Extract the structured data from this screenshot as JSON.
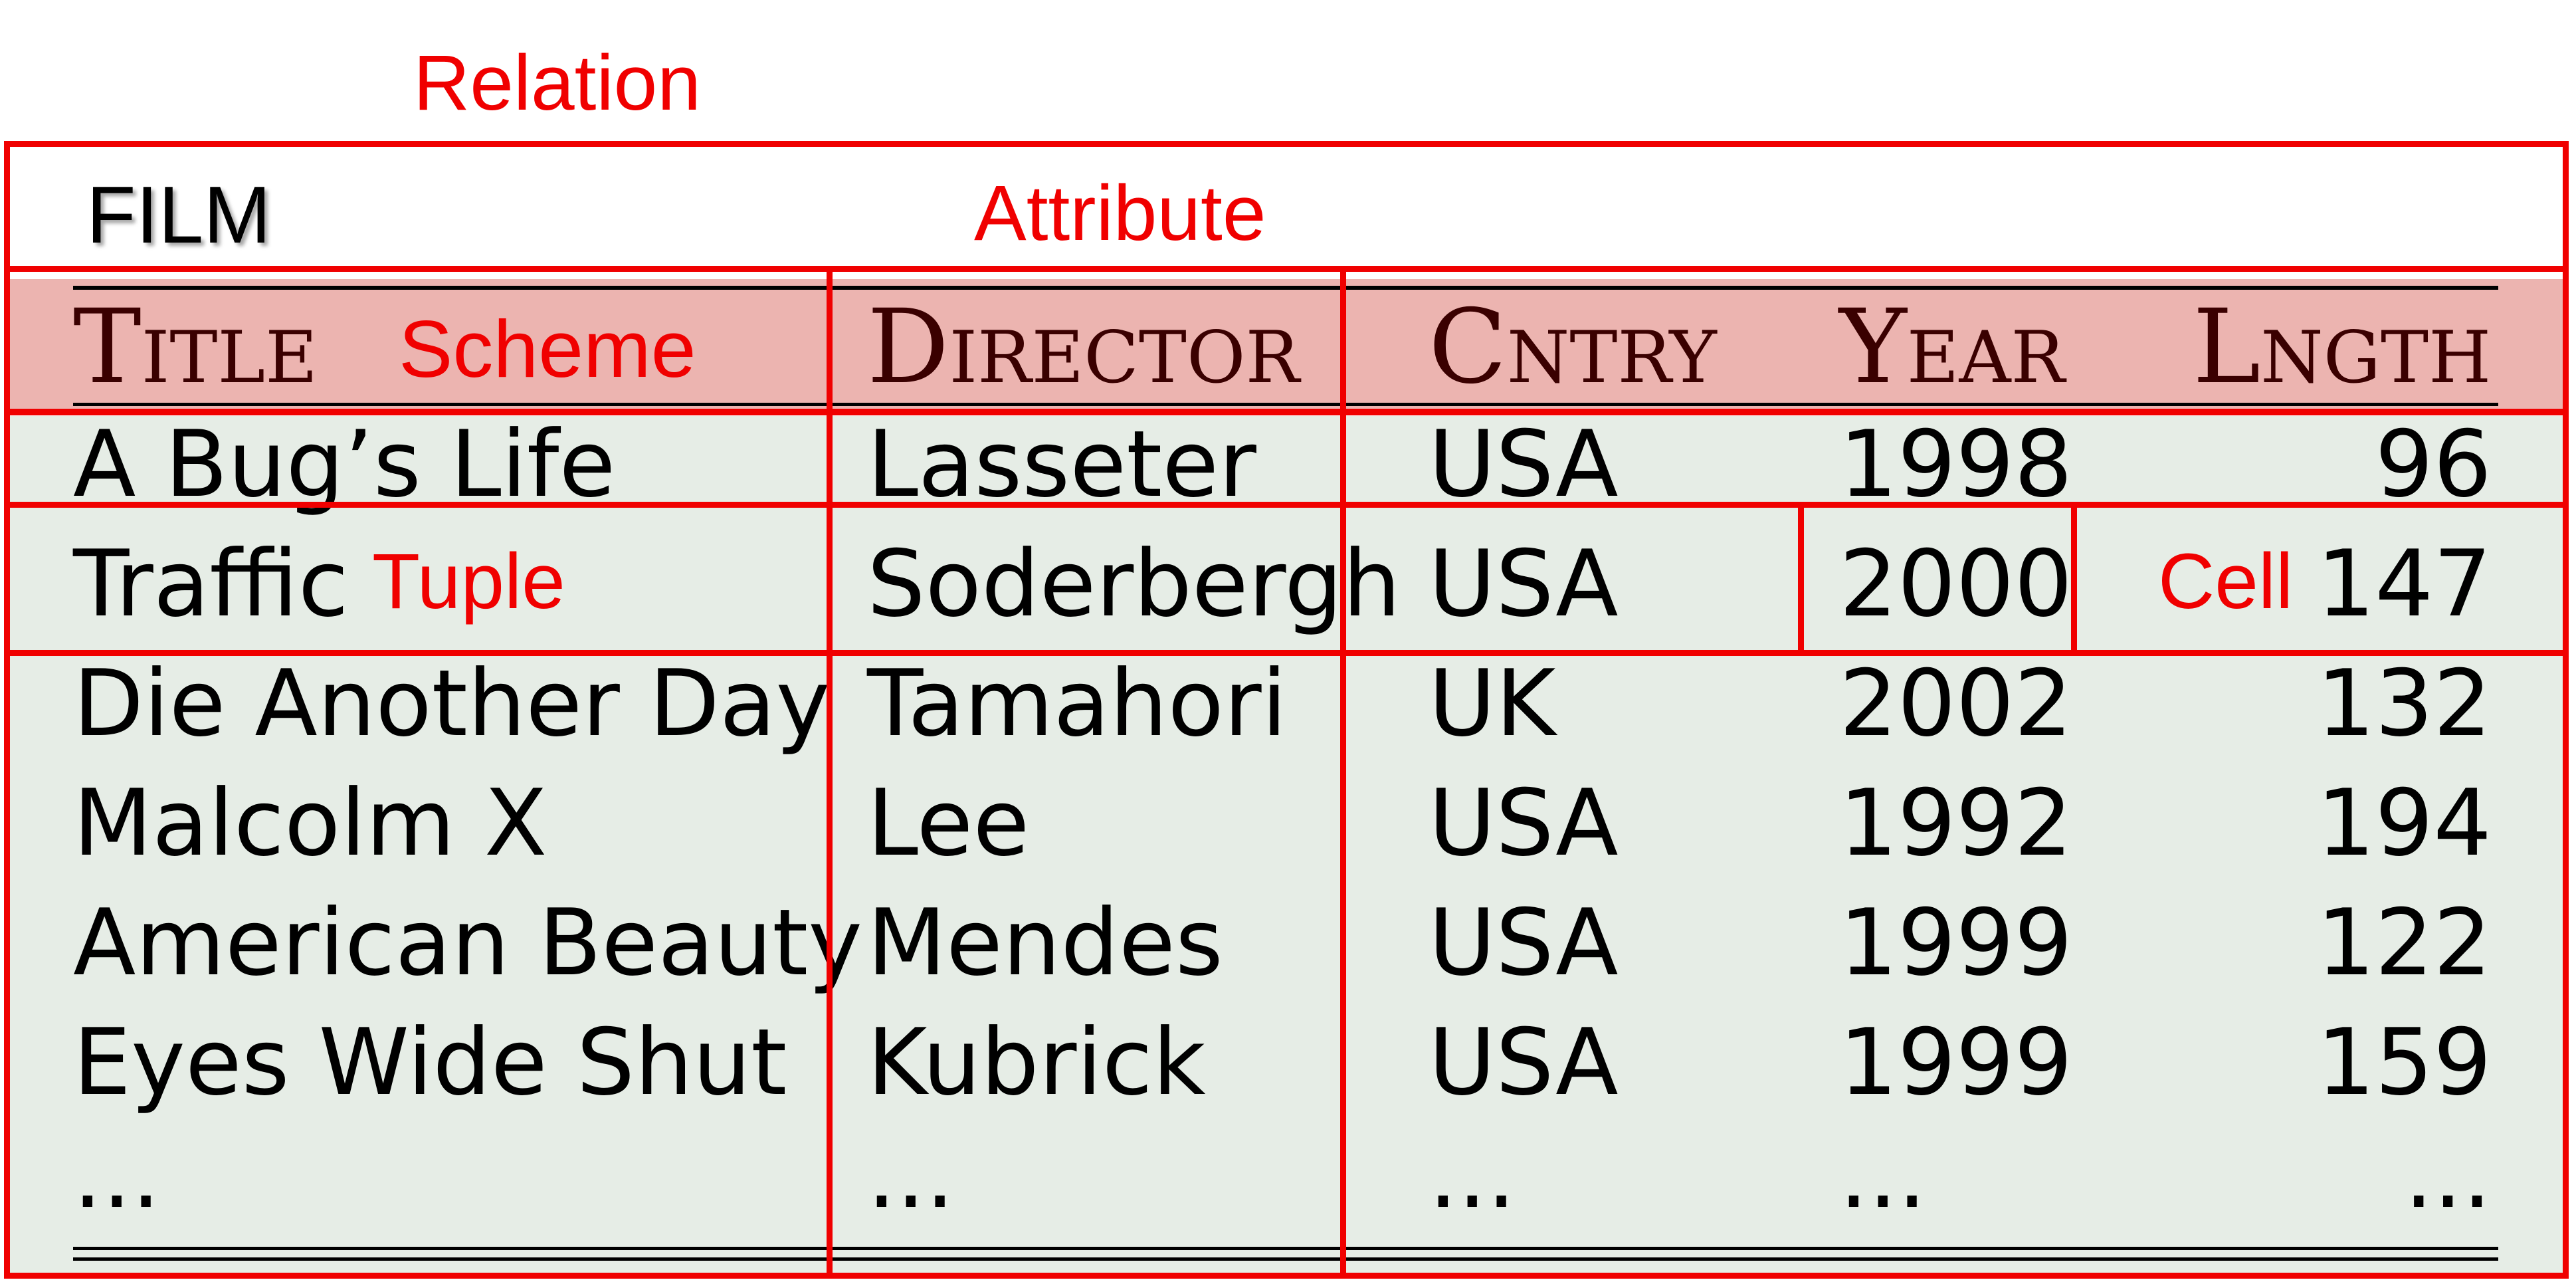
{
  "labels": {
    "relation": "Relation",
    "attribute": "Attribute",
    "scheme": "Scheme",
    "tuple": "Tuple",
    "cell": "Cell"
  },
  "relation_name": "FILM",
  "table": {
    "columns": [
      "Title",
      "Director",
      "Cntry",
      "Year",
      "Lngth"
    ],
    "rows": [
      [
        "A Bug’s Life",
        "Lasseter",
        "USA",
        "1998",
        "96"
      ],
      [
        "Traffic",
        "Soderbergh",
        "USA",
        "2000",
        "147"
      ],
      [
        "Die Another Day",
        "Tamahori",
        "UK",
        "2002",
        "132"
      ],
      [
        "Malcolm X",
        "Lee",
        "USA",
        "1992",
        "194"
      ],
      [
        "American Beauty",
        "Mendes",
        "USA",
        "1999",
        "122"
      ],
      [
        "Eyes Wide Shut",
        "Kubrick",
        "USA",
        "1999",
        "159"
      ],
      [
        "...",
        "...",
        "...",
        "...",
        "..."
      ]
    ]
  },
  "colors": {
    "annotation": "#f00000",
    "header_bg": "#ecb4b0",
    "body_bg": "#e6ede6"
  }
}
